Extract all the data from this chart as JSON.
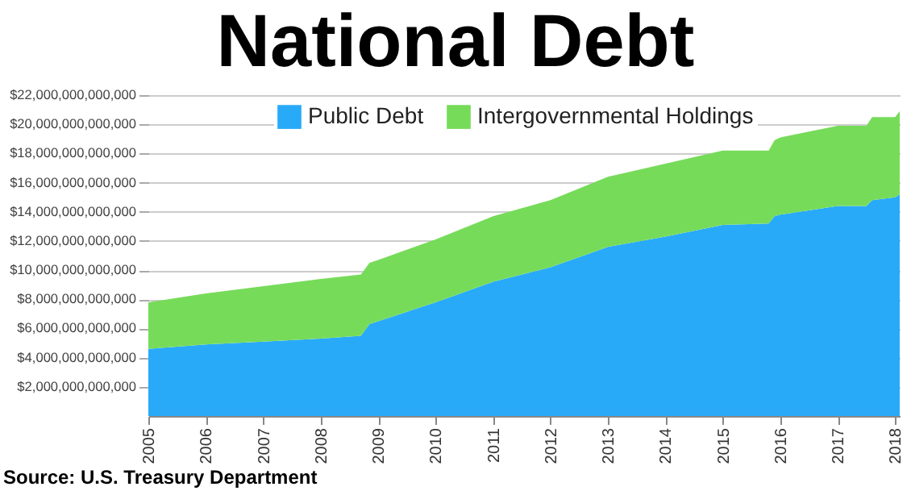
{
  "chart_data": {
    "type": "area",
    "title": "National Debt",
    "stacked": true,
    "x": [
      2005.0,
      2006.0,
      2007.0,
      2008.0,
      2008.7,
      2008.85,
      2009.0,
      2010.0,
      2011.0,
      2012.0,
      2013.0,
      2014.0,
      2015.0,
      2015.8,
      2015.9,
      2016.0,
      2017.0,
      2017.5,
      2017.6,
      2018.0,
      2018.08
    ],
    "series": [
      {
        "name": "Public Debt",
        "color": "#29aaf9",
        "values": [
          4600000000000,
          4900000000000,
          5100000000000,
          5300000000000,
          5500000000000,
          6300000000000,
          6500000000000,
          7800000000000,
          9200000000000,
          10200000000000,
          11600000000000,
          12300000000000,
          13100000000000,
          13200000000000,
          13700000000000,
          13800000000000,
          14400000000000,
          14400000000000,
          14800000000000,
          15000000000000,
          15200000000000
        ]
      },
      {
        "name": "Intergovernmental Holdings",
        "color": "#77db5a",
        "values": [
          3200000000000,
          3500000000000,
          3800000000000,
          4100000000000,
          4200000000000,
          4200000000000,
          4200000000000,
          4300000000000,
          4500000000000,
          4600000000000,
          4800000000000,
          5000000000000,
          5100000000000,
          5000000000000,
          5200000000000,
          5300000000000,
          5500000000000,
          5500000000000,
          5700000000000,
          5500000000000,
          5700000000000
        ]
      }
    ],
    "xlim": [
      2005,
      2018.08
    ],
    "xticks": [
      2005,
      2006,
      2007,
      2008,
      2009,
      2010,
      2011,
      2012,
      2013,
      2014,
      2015,
      2016,
      2017,
      2018
    ],
    "ylim": [
      0,
      22000000000000
    ],
    "yticks": [
      {
        "value": 2000000000000,
        "label": "$2,000,000,000,000"
      },
      {
        "value": 4000000000000,
        "label": "$4,000,000,000,000"
      },
      {
        "value": 6000000000000,
        "label": "$6,000,000,000,000"
      },
      {
        "value": 8000000000000,
        "label": "$8,000,000,000,000"
      },
      {
        "value": 10000000000000,
        "label": "$10,000,000,000,000"
      },
      {
        "value": 12000000000000,
        "label": "$12,000,000,000,000"
      },
      {
        "value": 14000000000000,
        "label": "$14,000,000,000,000"
      },
      {
        "value": 16000000000000,
        "label": "$16,000,000,000,000"
      },
      {
        "value": 18000000000000,
        "label": "$18,000,000,000,000"
      },
      {
        "value": 20000000000000,
        "label": "$20,000,000,000,000"
      },
      {
        "value": 22000000000000,
        "label": "$22,000,000,000,000"
      }
    ],
    "grid": "y",
    "legend": "top",
    "annotations": [
      "Source: U.S. Treasury Department"
    ]
  }
}
